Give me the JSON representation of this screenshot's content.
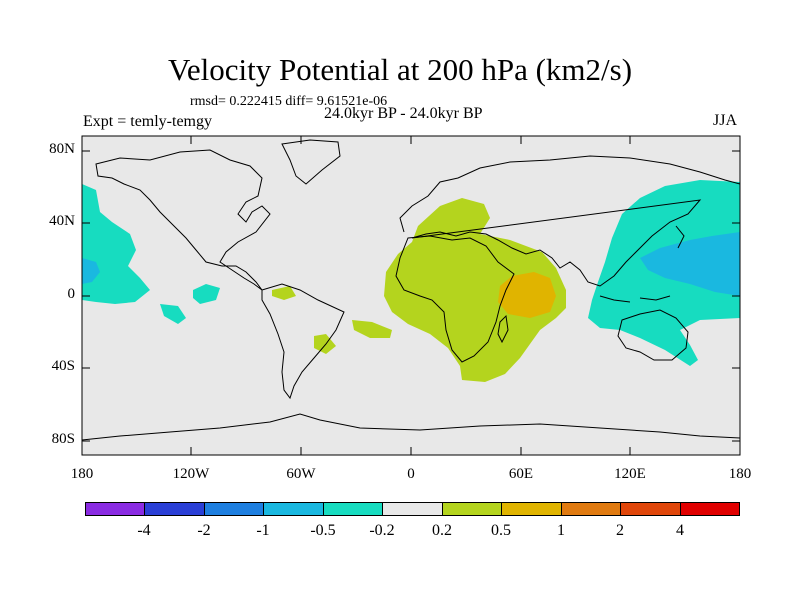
{
  "title": "Velocity Potential at 200 hPa (km2/s)",
  "stats": "rmsd= 0.222415 diff= 9.61521e-06",
  "experiment": "Expt = temly-temgy",
  "subtitle": "24.0kyr BP - 24.0kyr BP",
  "season": "JJA",
  "lat_labels": [
    "80N",
    "40N",
    "0",
    "40S",
    "80S"
  ],
  "lon_labels": [
    "180",
    "120W",
    "60W",
    "0",
    "60E",
    "120E",
    "180"
  ],
  "colorbar": {
    "colors": [
      "#8a2be2",
      "#2a3fd6",
      "#1e7fe0",
      "#1ab8e0",
      "#17dcc0",
      "#e8e8e8",
      "#b4d41e",
      "#e0b400",
      "#e07a10",
      "#e0460a",
      "#e00000"
    ],
    "labels": [
      "-4",
      "-2",
      "-1",
      "-0.5",
      "-0.2",
      "0.2",
      "0.5",
      "1",
      "2",
      "4"
    ]
  },
  "colors": {
    "background": "#e8e8e8",
    "positive_light": "#b4d41e",
    "positive_mid": "#e0b400",
    "negative_light": "#17dcc0",
    "negative_mid": "#1ab8e0"
  }
}
